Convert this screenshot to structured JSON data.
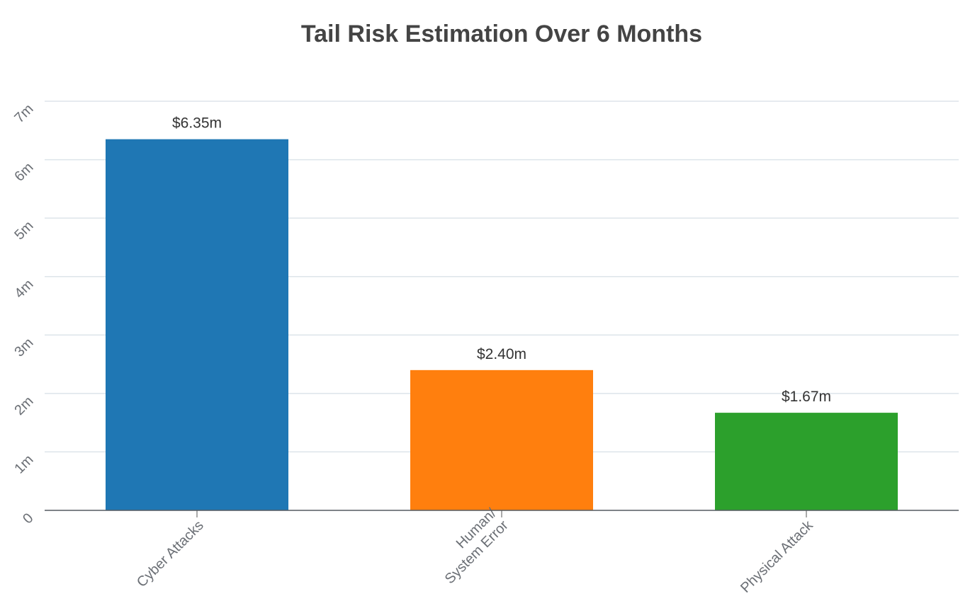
{
  "chart_data": {
    "type": "bar",
    "title": "Tail Risk Estimation Over 6 Months",
    "xlabel": "",
    "ylabel": "",
    "categories": [
      [
        "Cyber Attacks"
      ],
      [
        "Human/",
        "System Error"
      ],
      [
        "Physical Attack"
      ]
    ],
    "values": [
      6.35,
      2.4,
      1.67
    ],
    "data_labels": [
      "$6.35m",
      "$2.40m",
      "$1.67m"
    ],
    "colors": [
      "#1f77b4",
      "#ff7f0e",
      "#2ca02c"
    ],
    "ylim": [
      0,
      7
    ],
    "yticks": [
      0,
      1,
      2,
      3,
      4,
      5,
      6,
      7
    ],
    "ytick_labels": [
      "0",
      "1m",
      "2m",
      "3m",
      "4m",
      "5m",
      "6m",
      "7m"
    ],
    "grid": true,
    "legend": "none"
  }
}
